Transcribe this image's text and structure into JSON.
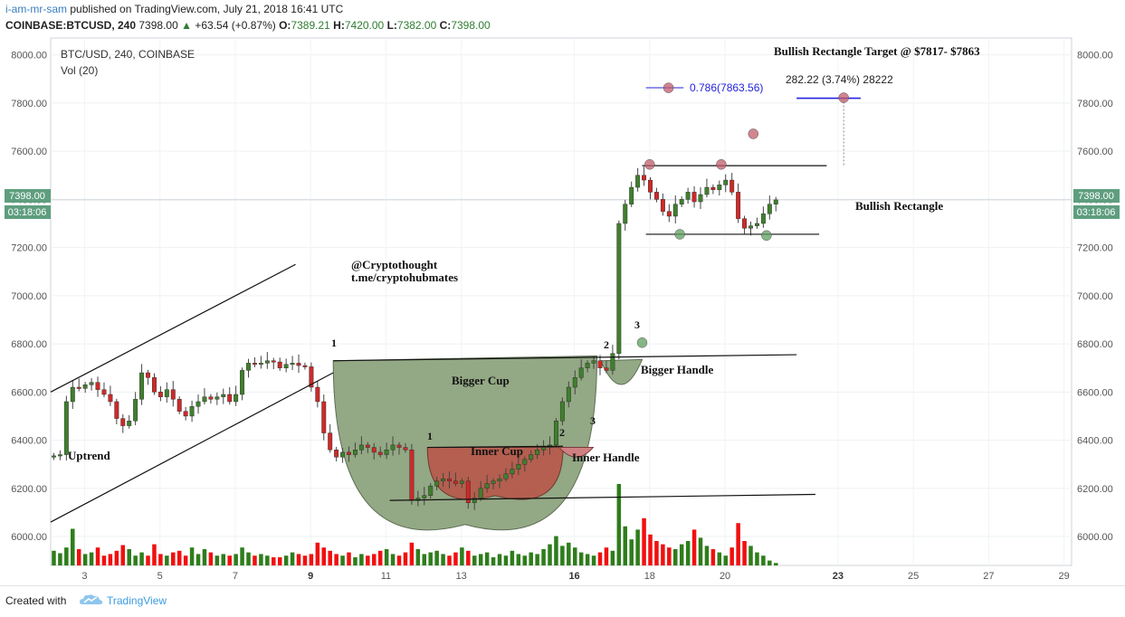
{
  "header": {
    "author": "i-am-mr-sam",
    "published": "published on TradingView.com, July 21, 2018 16:41 UTC",
    "symbol": "COINBASE:BTCUSD, 240",
    "last": "7398.00",
    "change": "+63.54 (+0.87%)",
    "o_label": "O:",
    "o": "7389.21",
    "h_label": "H:",
    "h": "7420.00",
    "l_label": "L:",
    "l": "7382.00",
    "c_label": "C:",
    "c": "7398.00"
  },
  "legend": {
    "pair": "BTC/USD, 240, COINBASE",
    "vol": "Vol (20)"
  },
  "price_tag": {
    "price": "7398.00",
    "countdown": "03:18:06"
  },
  "footer": {
    "created": "Created with",
    "brand": "TradingView"
  },
  "chart_data": {
    "type": "candlestick",
    "y_range": [
      5880,
      8070
    ],
    "y_ticks": [
      6000,
      6200,
      6400,
      6600,
      6800,
      7000,
      7200,
      7400,
      7600,
      7800,
      8000
    ],
    "y_tick_labels": [
      "6000.00",
      "6200.00",
      "6400.00",
      "6600.00",
      "6800.00",
      "7000.00",
      "7200.00",
      "7400.00",
      "7600.00",
      "7800.00",
      "8000.00"
    ],
    "x_range_days": [
      2.1,
      29.2
    ],
    "x_ticks": [
      {
        "day": 3,
        "label": "3",
        "bold": false
      },
      {
        "day": 5,
        "label": "5",
        "bold": false
      },
      {
        "day": 7,
        "label": "7",
        "bold": false
      },
      {
        "day": 9,
        "label": "9",
        "bold": true
      },
      {
        "day": 11,
        "label": "11",
        "bold": false
      },
      {
        "day": 13,
        "label": "13",
        "bold": false
      },
      {
        "day": 16,
        "label": "16",
        "bold": true
      },
      {
        "day": 18,
        "label": "18",
        "bold": false
      },
      {
        "day": 20,
        "label": "20",
        "bold": false
      },
      {
        "day": 23,
        "label": "23",
        "bold": true
      },
      {
        "day": 25,
        "label": "25",
        "bold": false
      },
      {
        "day": 27,
        "label": "27",
        "bold": false
      },
      {
        "day": 29,
        "label": "29",
        "bold": false
      }
    ],
    "candles_per_day": 6,
    "first_candle_day": 2.1,
    "closes": [
      6335,
      6340,
      6560,
      6620,
      6615,
      6630,
      6640,
      6610,
      6590,
      6560,
      6490,
      6460,
      6480,
      6570,
      6680,
      6660,
      6600,
      6580,
      6610,
      6570,
      6520,
      6500,
      6540,
      6560,
      6580,
      6570,
      6580,
      6590,
      6560,
      6590,
      6690,
      6720,
      6715,
      6720,
      6730,
      6725,
      6700,
      6715,
      6720,
      6710,
      6705,
      6620,
      6560,
      6430,
      6360,
      6330,
      6350,
      6340,
      6360,
      6380,
      6370,
      6350,
      6340,
      6360,
      6380,
      6370,
      6360,
      6150,
      6160,
      6170,
      6210,
      6230,
      6240,
      6230,
      6220,
      6230,
      6140,
      6160,
      6200,
      6220,
      6230,
      6240,
      6260,
      6280,
      6300,
      6320,
      6340,
      6360,
      6370,
      6380,
      6480,
      6560,
      6620,
      6660,
      6700,
      6720,
      6730,
      6700,
      6690,
      6760,
      7300,
      7380,
      7450,
      7500,
      7480,
      7430,
      7400,
      7350,
      7330,
      7380,
      7400,
      7430,
      7390,
      7420,
      7450,
      7440,
      7460,
      7480,
      7430,
      7320,
      7280,
      7290,
      7300,
      7340,
      7380,
      7398
    ],
    "volumes": [
      18,
      15,
      22,
      45,
      20,
      14,
      16,
      22,
      12,
      14,
      18,
      25,
      20,
      12,
      16,
      12,
      26,
      14,
      12,
      16,
      18,
      12,
      22,
      14,
      20,
      16,
      12,
      14,
      12,
      14,
      22,
      16,
      12,
      14,
      12,
      10,
      10,
      12,
      16,
      14,
      12,
      14,
      28,
      22,
      18,
      14,
      12,
      16,
      10,
      14,
      12,
      14,
      18,
      20,
      14,
      12,
      16,
      28,
      20,
      14,
      16,
      18,
      14,
      12,
      16,
      22,
      18,
      12,
      14,
      16,
      10,
      14,
      12,
      18,
      14,
      12,
      16,
      14,
      20,
      26,
      36,
      24,
      28,
      22,
      16,
      14,
      12,
      16,
      22,
      18,
      100,
      48,
      32,
      44,
      58,
      38,
      30,
      26,
      22,
      20,
      26,
      30,
      44,
      34,
      24,
      20,
      16,
      12,
      22,
      52,
      30,
      24,
      16,
      12,
      6,
      3
    ],
    "annotations": {
      "title": "Bullish Rectangle Target @ $7817- $7863",
      "fib": "0.786(7863.56)",
      "measure": "282.22 (3.74%) 28222",
      "rect": "Bullish Rectangle",
      "handle_tag": "@Cryptothought",
      "handle_link": "t.me/cryptohubmates",
      "bigger_cup": "Bigger Cup",
      "bigger_handle": "Bigger Handle",
      "inner_cup": "Inner Cup",
      "inner_handle": "Inner Handle",
      "uptrend": "Uptrend",
      "n1": "1",
      "n2": "2",
      "n3": "3"
    },
    "rectangle": {
      "top": 7540,
      "bottom": 7255
    },
    "neckline": {
      "start": 6730,
      "end": 6755
    },
    "support_line": {
      "start": 6150,
      "end": 6175
    },
    "colors": {
      "up": "#3f7f2e",
      "down": "#cc2a2a",
      "vol_up": "#2e7d1b",
      "vol_down": "#f01010",
      "cup": "#93a884",
      "inner_cup": "#b45f4f",
      "tag": "#5e9e7e",
      "fib": "#2323e0"
    }
  }
}
